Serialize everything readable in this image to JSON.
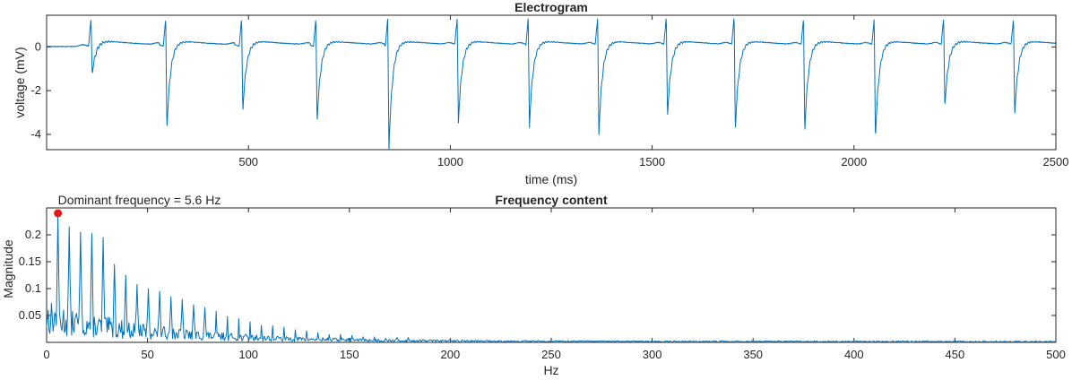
{
  "chart_data": [
    {
      "type": "line",
      "title": "Electrogram",
      "xlabel": "time (ms)",
      "ylabel": "voltage (mV)",
      "xlim": [
        0,
        2500
      ],
      "ylim": [
        -4.7,
        1.45
      ],
      "xticks": [
        500,
        1000,
        1500,
        2000,
        2500
      ],
      "yticks": [
        0,
        -2,
        -4
      ],
      "grid": false,
      "line_color": "#0072BD",
      "beats": [
        {
          "t": 110,
          "min": -1.3
        },
        {
          "t": 295,
          "min": -3.8
        },
        {
          "t": 483,
          "min": -3.0
        },
        {
          "t": 667,
          "min": -3.5
        },
        {
          "t": 845,
          "min": -4.7
        },
        {
          "t": 1017,
          "min": -3.5
        },
        {
          "t": 1193,
          "min": -3.7
        },
        {
          "t": 1365,
          "min": -4.05
        },
        {
          "t": 1535,
          "min": -3.25
        },
        {
          "t": 1703,
          "min": -3.85
        },
        {
          "t": 1875,
          "min": -3.95
        },
        {
          "t": 2050,
          "min": -4.25
        },
        {
          "t": 2222,
          "min": -2.8
        },
        {
          "t": 2395,
          "min": -3.2
        }
      ]
    },
    {
      "type": "line",
      "title": "Frequency content",
      "xlabel": "Hz",
      "ylabel": "Magnitude",
      "xlim": [
        0,
        500
      ],
      "ylim": [
        0,
        0.25
      ],
      "xticks": [
        0,
        50,
        100,
        150,
        200,
        250,
        300,
        350,
        400,
        450,
        500
      ],
      "yticks": [
        0.05,
        0.1,
        0.15,
        0.2
      ],
      "grid": false,
      "line_color": "#0072BD",
      "harmonic_peaks": [
        {
          "f": 5.6,
          "mag": 0.235
        },
        {
          "f": 11.2,
          "mag": 0.215
        },
        {
          "f": 16.8,
          "mag": 0.205
        },
        {
          "f": 22.4,
          "mag": 0.203
        },
        {
          "f": 28.0,
          "mag": 0.195
        },
        {
          "f": 33.6,
          "mag": 0.145
        },
        {
          "f": 39.2,
          "mag": 0.125
        },
        {
          "f": 44.8,
          "mag": 0.108
        },
        {
          "f": 50.4,
          "mag": 0.1
        },
        {
          "f": 56.0,
          "mag": 0.095
        },
        {
          "f": 61.6,
          "mag": 0.085
        },
        {
          "f": 67.2,
          "mag": 0.08
        },
        {
          "f": 72.8,
          "mag": 0.07
        },
        {
          "f": 78.4,
          "mag": 0.065
        }
      ],
      "dominant": {
        "f": 5.6,
        "mag": 0.24,
        "label": "Dominant frequency = 5.6 Hz",
        "marker_color": "#E8191B"
      }
    }
  ]
}
